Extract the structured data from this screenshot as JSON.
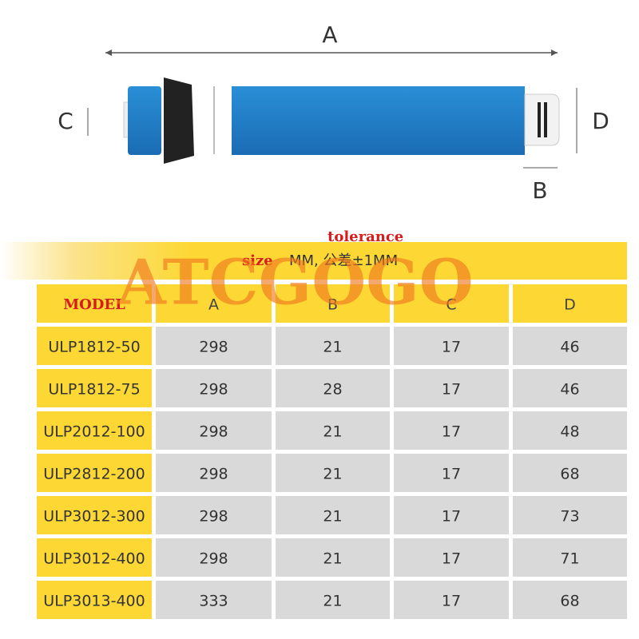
{
  "diagram": {
    "labels": {
      "a": "A",
      "b": "B",
      "c": "C",
      "d": "D"
    }
  },
  "banner": {
    "size": "size",
    "text": "MM, 公差±1MM",
    "tolerance": "tolerance"
  },
  "watermark": "ATCGOGO",
  "table": {
    "header": [
      "MODEL",
      "A",
      "B",
      "C",
      "D"
    ],
    "rows": [
      [
        "ULP1812-50",
        298,
        21,
        17,
        46
      ],
      [
        "ULP1812-75",
        298,
        28,
        17,
        46
      ],
      [
        "ULP2012-100",
        298,
        21,
        17,
        48
      ],
      [
        "ULP2812-200",
        298,
        21,
        17,
        68
      ],
      [
        "ULP3012-300",
        298,
        21,
        17,
        73
      ],
      [
        "ULP3012-400",
        298,
        21,
        17,
        71
      ],
      [
        "ULP3013-400",
        333,
        21,
        17,
        68
      ]
    ]
  }
}
